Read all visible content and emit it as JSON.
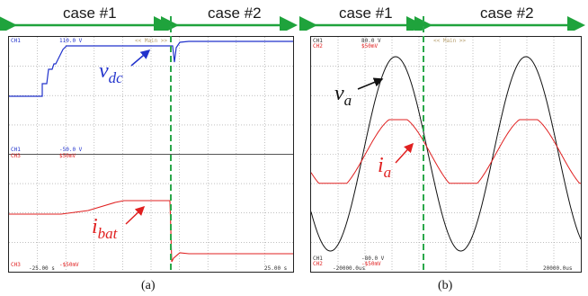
{
  "header": {
    "case1": "case #1",
    "case2": "case #2"
  },
  "panel_a": {
    "caption": "(a)",
    "top": {
      "ch": "CH1",
      "value": "110.0 V",
      "mode": "<< Main >>"
    },
    "mid": {
      "ch1": "CH1",
      "v1": "-50.0 V",
      "ch3": "CH3",
      "v3": "$50mV"
    },
    "bottom": {
      "ch": "CH3",
      "value": "-$50mV",
      "time_left": "-25.00 s",
      "time_right": "25.00 s"
    },
    "label_vdc": {
      "main": "v",
      "sub": "dc"
    },
    "label_ibat": {
      "main": "i",
      "sub": "bat"
    }
  },
  "panel_b": {
    "caption": "(b)",
    "top": {
      "ch1": "CH1",
      "v1": "80.0 V",
      "ch2": "CH2",
      "v2": "$50mV",
      "mode": "<< Main >>"
    },
    "bottom": {
      "ch1": "CH1",
      "v1": "-80.0 V",
      "ch2": "CH2",
      "v2": "-$50mV",
      "time_left": "-20000.0us",
      "time_right": "20000.0us"
    },
    "label_va": {
      "main": "v",
      "sub": "a"
    },
    "label_ia": {
      "main": "i",
      "sub": "a"
    }
  },
  "colors": {
    "arrow_green": "#1fa33c",
    "divider_green": "#2aa84a",
    "vdc_blue": "#2233cc",
    "ibat_red": "#e02020",
    "va_black": "#111111",
    "ia_red": "#e02020",
    "grid": "#9a9a9a"
  }
}
